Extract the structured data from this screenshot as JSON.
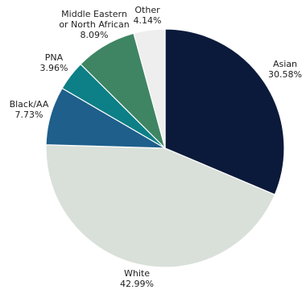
{
  "chart_data": {
    "type": "pie",
    "start_angle_deg": 0,
    "direction": "clockwise",
    "slices": [
      {
        "name": "Asian",
        "label_lines": [
          "Asian",
          "30.58%"
        ],
        "value": 30.58,
        "color": "#0b1a3a"
      },
      {
        "name": "White",
        "label_lines": [
          "White",
          "42.99%"
        ],
        "value": 42.99,
        "color": "#d9e0d9"
      },
      {
        "name": "Black/AA",
        "label_lines": [
          "Black/AA",
          "7.73%"
        ],
        "value": 7.73,
        "color": "#1f5f8b"
      },
      {
        "name": "PNA",
        "label_lines": [
          "PNA",
          "3.96%"
        ],
        "value": 3.96,
        "color": "#0d7f86"
      },
      {
        "name": "Middle Eastern or North African",
        "label_lines": [
          "Middle Eastern",
          "or North African",
          "8.09%"
        ],
        "value": 8.09,
        "color": "#3f8563"
      },
      {
        "name": "Other",
        "label_lines": [
          "Other",
          "4.14%"
        ],
        "value": 4.14,
        "color": "#eeeeee"
      }
    ]
  }
}
